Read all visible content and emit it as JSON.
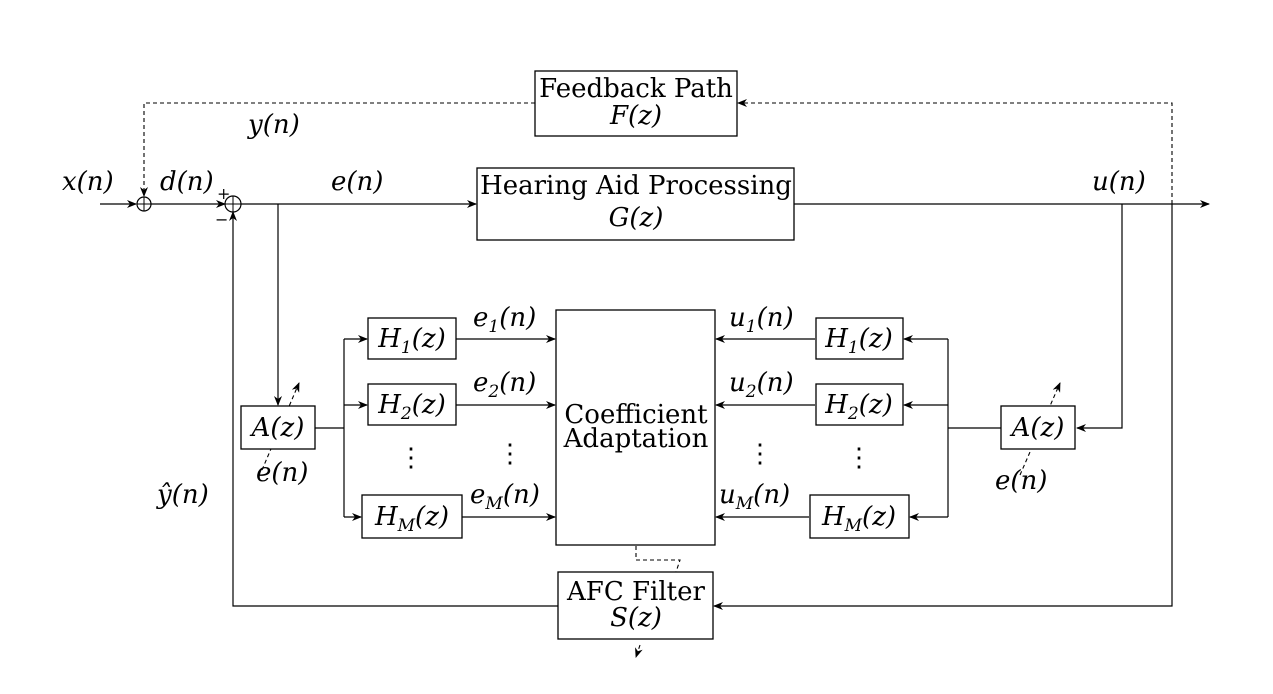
{
  "blocks": {
    "feedback_path": {
      "line1": "Feedback Path",
      "line2": "F(z)"
    },
    "hearing_aid": {
      "line1": "Hearing Aid Processing",
      "line2": "G(z)"
    },
    "coefficient_adaptation": {
      "line1": "Coefficient",
      "line2": "Adaptation"
    },
    "afc_filter": {
      "line1": "AFC Filter",
      "line2": "S(z)"
    },
    "prewhite_left": {
      "label": "A(z)"
    },
    "prewhite_right": {
      "label": "A(z)"
    },
    "filterbank_left": [
      {
        "base": "H",
        "sub": "1",
        "tail": "(z)"
      },
      {
        "base": "H",
        "sub": "2",
        "tail": "(z)"
      },
      {
        "base": "H",
        "sub": "M",
        "tail": "(z)"
      }
    ],
    "filterbank_right": [
      {
        "base": "H",
        "sub": "1",
        "tail": "(z)"
      },
      {
        "base": "H",
        "sub": "2",
        "tail": "(z)"
      },
      {
        "base": "H",
        "sub": "M",
        "tail": "(z)"
      }
    ]
  },
  "signals": {
    "x": "x(n)",
    "d": "d(n)",
    "y": "y(n)",
    "e": "e(n)",
    "u": "u(n)",
    "y_hat": "ŷ(n)",
    "e_step_left": "e(n)",
    "e_step_right": "e(n)",
    "e_sub": [
      {
        "base": "e",
        "sub": "1",
        "tail": "(n)"
      },
      {
        "base": "e",
        "sub": "2",
        "tail": "(n)"
      },
      {
        "base": "e",
        "sub": "M",
        "tail": "(n)"
      }
    ],
    "u_sub": [
      {
        "base": "u",
        "sub": "1",
        "tail": "(n)"
      },
      {
        "base": "u",
        "sub": "2",
        "tail": "(n)"
      },
      {
        "base": "u",
        "sub": "M",
        "tail": "(n)"
      }
    ]
  },
  "sum_signs": {
    "plus": "+",
    "minus": "−"
  },
  "ellipsis": "⋮"
}
